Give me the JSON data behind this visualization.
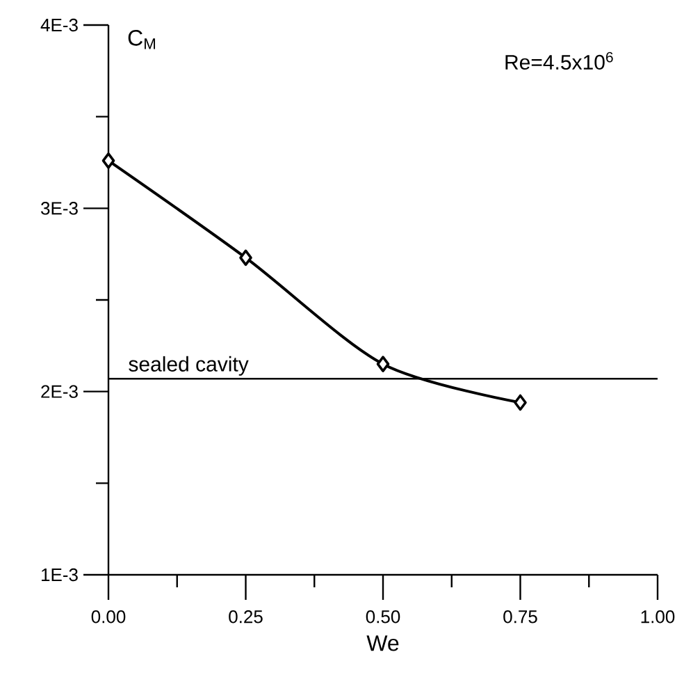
{
  "chart_data": {
    "type": "line",
    "xlabel": "We",
    "ylabel": "C$_{M}$",
    "annotations": [
      "Re=4.5x10$^{6}$"
    ],
    "x": [
      0,
      0.25,
      0.5,
      0.75
    ],
    "series": [
      {
        "color": "#000000",
        "values": [
          0.00326,
          0.00273,
          0.00215,
          0.00194
        ]
      }
    ],
    "xlim": [
      0,
      1
    ],
    "ylim": [
      0.001,
      0.004
    ],
    "xticks": [
      {
        "value": 0,
        "label": "0.00"
      },
      {
        "value": 0.125,
        "label": null
      },
      {
        "value": 0.25,
        "label": "0.25"
      },
      {
        "value": 0.375,
        "label": null
      },
      {
        "value": 0.5,
        "label": "0.50"
      },
      {
        "value": 0.625,
        "label": null
      },
      {
        "value": 0.75,
        "label": "0.75"
      },
      {
        "value": 0.875,
        "label": null
      },
      {
        "value": 1,
        "label": "1.00"
      }
    ],
    "yticks": [
      {
        "value": 0.001,
        "label": "1E-3"
      },
      {
        "value": 0.0015,
        "label": null
      },
      {
        "value": 0.002,
        "label": "2E-3"
      },
      {
        "value": 0.0025,
        "label": null
      },
      {
        "value": 0.003,
        "label": "3E-3"
      },
      {
        "value": 0.0035,
        "label": null
      },
      {
        "value": 0.004,
        "label": "4E-3"
      }
    ],
    "ref_lines": [
      {
        "axis": "y",
        "value": 0.00207,
        "label": "sealed cavity",
        "color": "#000000"
      }
    ],
    "marker": "diamond",
    "line_style": "solid"
  }
}
